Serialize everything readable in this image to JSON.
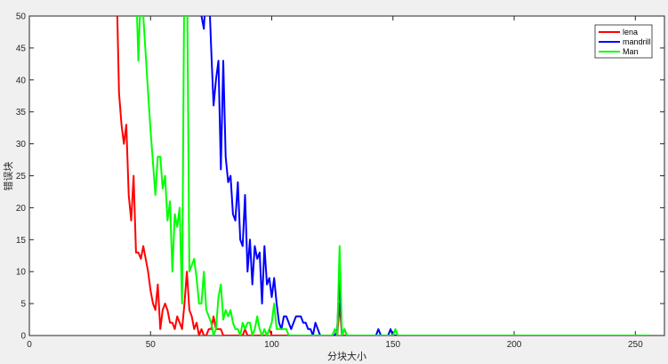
{
  "chart_data": {
    "type": "line",
    "title": "",
    "xlabel": "分块大小",
    "ylabel": "错误块",
    "xlim": [
      0,
      262
    ],
    "ylim": [
      0,
      50
    ],
    "xticks": [
      0,
      50,
      100,
      150,
      200,
      250
    ],
    "yticks": [
      0,
      5,
      10,
      15,
      20,
      25,
      30,
      35,
      40,
      45,
      50
    ],
    "grid": false,
    "legend_position": "top-right",
    "series": [
      {
        "name": "lena",
        "color": "#ff0000",
        "x": [
          36,
          37,
          38,
          39,
          40,
          41,
          42,
          43,
          44,
          45,
          46,
          47,
          48,
          49,
          50,
          51,
          52,
          53,
          54,
          55,
          56,
          57,
          58,
          59,
          60,
          61,
          62,
          63,
          64,
          65,
          66,
          67,
          68,
          69,
          70,
          71,
          72,
          73,
          74,
          75,
          76,
          77,
          78,
          79,
          80,
          81,
          82,
          83,
          84,
          85,
          86,
          87,
          88,
          89,
          90,
          91,
          92,
          93,
          94,
          95,
          96,
          97,
          98,
          99,
          100,
          101,
          102,
          103,
          104,
          105,
          106,
          107,
          108,
          109,
          110,
          126,
          127,
          128,
          129,
          130,
          256
        ],
        "y": [
          55,
          38,
          33,
          30,
          33,
          22,
          18,
          25,
          13,
          13,
          12,
          14,
          12,
          10,
          7,
          5,
          4,
          8,
          1,
          4,
          5,
          4,
          2,
          2,
          1,
          3,
          2,
          1,
          5,
          10,
          4,
          3,
          1,
          2,
          0,
          1,
          0,
          0,
          1,
          1,
          3,
          1,
          1,
          1,
          0,
          0,
          0,
          0,
          0,
          0,
          0,
          0,
          0,
          1,
          0,
          0,
          0,
          0,
          0,
          0,
          0,
          0,
          0,
          1,
          0,
          0,
          0,
          0,
          0,
          0,
          0,
          0,
          0,
          0,
          0,
          0,
          0,
          5,
          0,
          0,
          0
        ]
      },
      {
        "name": "mandrill",
        "color": "#0000ff",
        "x": [
          70,
          71,
          72,
          73,
          74,
          75,
          76,
          77,
          78,
          79,
          80,
          81,
          82,
          83,
          84,
          85,
          86,
          87,
          88,
          89,
          90,
          91,
          92,
          93,
          94,
          95,
          96,
          97,
          98,
          99,
          100,
          101,
          102,
          103,
          104,
          105,
          106,
          107,
          108,
          109,
          110,
          111,
          112,
          113,
          114,
          115,
          116,
          117,
          118,
          119,
          120,
          126,
          127,
          128,
          129,
          130,
          131,
          132,
          143,
          144,
          145,
          148,
          149,
          150,
          256
        ],
        "y": [
          55,
          50,
          48,
          55,
          55,
          45,
          36,
          40,
          43,
          26,
          43,
          28,
          24,
          25,
          19,
          18,
          24,
          15,
          14,
          22,
          10,
          15,
          8,
          14,
          12,
          13,
          5,
          14,
          8,
          9,
          6,
          9,
          5,
          2,
          1,
          3,
          3,
          2,
          1,
          2,
          3,
          3,
          3,
          2,
          2,
          1,
          1,
          0,
          2,
          1,
          0,
          0,
          1,
          9,
          0,
          1,
          0,
          0,
          0,
          1,
          0,
          0,
          1,
          0,
          0
        ]
      },
      {
        "name": "Man",
        "color": "#00ff00",
        "x": [
          44,
          45,
          46,
          47,
          48,
          49,
          50,
          51,
          52,
          53,
          54,
          55,
          56,
          57,
          58,
          59,
          60,
          61,
          62,
          63,
          64,
          65,
          66,
          67,
          68,
          69,
          70,
          71,
          72,
          73,
          74,
          75,
          76,
          77,
          78,
          79,
          80,
          81,
          82,
          83,
          84,
          85,
          86,
          87,
          88,
          89,
          90,
          91,
          92,
          93,
          94,
          95,
          96,
          97,
          98,
          99,
          100,
          101,
          102,
          103,
          104,
          105,
          106,
          107,
          108,
          125,
          126,
          127,
          128,
          129,
          130,
          131,
          150,
          151,
          152,
          256
        ],
        "y": [
          55,
          43,
          55,
          50,
          44,
          38,
          32,
          27,
          22,
          28,
          28,
          23,
          25,
          18,
          21,
          10,
          19,
          17,
          20,
          5,
          60,
          60,
          10,
          11,
          12,
          9,
          5,
          5,
          10,
          4,
          3,
          2,
          0,
          1,
          6,
          8,
          2.5,
          4,
          3,
          4,
          2,
          1,
          1,
          0,
          2,
          1,
          2,
          2,
          0,
          1,
          3,
          1,
          0,
          1,
          0,
          1,
          2,
          5,
          1,
          1,
          1,
          1,
          1,
          0,
          0,
          0,
          1,
          0,
          14,
          0,
          1,
          0,
          0,
          1,
          0,
          0
        ]
      }
    ]
  }
}
